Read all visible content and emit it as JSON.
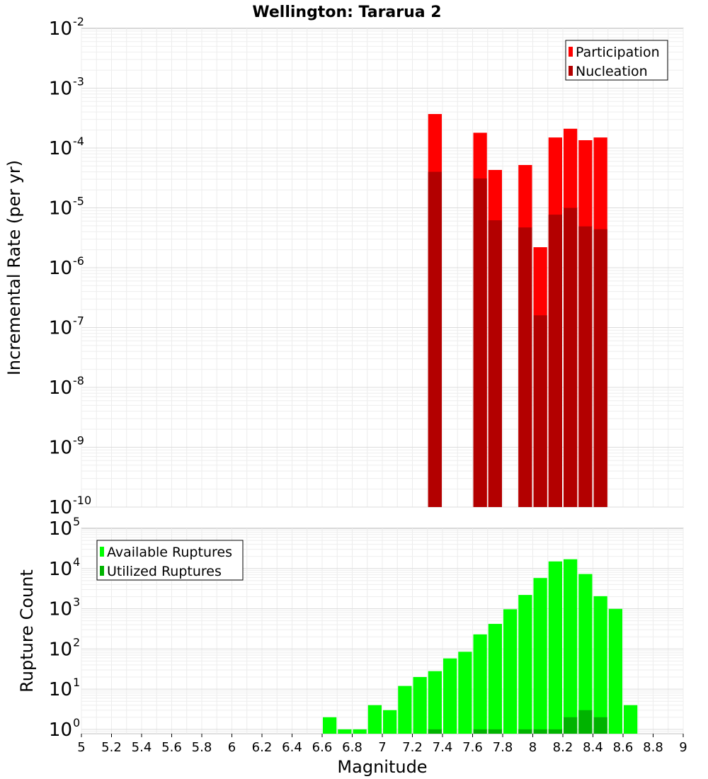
{
  "title": "Wellington: Tararua 2",
  "chart_data": [
    {
      "type": "bar",
      "name": "incremental-rate",
      "ylabel": "Incremental Rate (per yr)",
      "yscale": "log",
      "ylim_exp": [
        -10,
        -2
      ],
      "xlim": [
        5,
        9
      ],
      "bin_width": 0.1,
      "legend_position": "top-right",
      "series": [
        {
          "name": "Participation",
          "color": "#ff0000",
          "x": [
            7.35,
            7.65,
            7.75,
            7.95,
            8.05,
            8.15,
            8.25,
            8.35,
            8.45
          ],
          "values": [
            0.00037,
            0.00018,
            4.3e-05,
            5.2e-05,
            2.2e-06,
            0.00015,
            0.00021,
            0.000135,
            0.00015
          ]
        },
        {
          "name": "Nucleation",
          "color": "#b30000",
          "x": [
            7.35,
            7.65,
            7.75,
            7.95,
            8.05,
            8.15,
            8.25,
            8.35,
            8.45
          ],
          "values": [
            4e-05,
            3.1e-05,
            6.2e-06,
            4.7e-06,
            1.6e-07,
            7.7e-06,
            1e-05,
            4.9e-06,
            4.4e-06
          ]
        }
      ]
    },
    {
      "type": "bar",
      "name": "rupture-count",
      "ylabel": "Rupture Count",
      "xlabel": "Magnitude",
      "yscale": "log",
      "ylim_exp": [
        0,
        5
      ],
      "ymin_value": 0.78,
      "xlim": [
        5,
        9
      ],
      "xticks": [
        "5",
        "5.2",
        "5.4",
        "5.6",
        "5.8",
        "6",
        "6.2",
        "6.4",
        "6.6",
        "6.8",
        "7",
        "7.2",
        "7.4",
        "7.6",
        "7.8",
        "8",
        "8.2",
        "8.4",
        "8.6",
        "8.8",
        "9"
      ],
      "bin_width": 0.1,
      "legend_position": "top-left",
      "series": [
        {
          "name": "Available Ruptures",
          "color": "#00ff00",
          "x": [
            6.65,
            6.75,
            6.85,
            6.95,
            7.05,
            7.15,
            7.25,
            7.35,
            7.45,
            7.55,
            7.65,
            7.75,
            7.85,
            7.95,
            8.05,
            8.15,
            8.25,
            8.35,
            8.45,
            8.55,
            8.65
          ],
          "values": [
            2,
            1,
            1,
            4,
            3,
            12,
            20,
            28,
            58,
            85,
            230,
            420,
            970,
            2200,
            5800,
            15000,
            17000,
            7300,
            2050,
            990,
            4
          ]
        },
        {
          "name": "Utilized Ruptures",
          "color": "#00b300",
          "x": [
            7.35,
            7.65,
            7.75,
            7.95,
            8.05,
            8.15,
            8.25,
            8.35,
            8.45
          ],
          "values": [
            1,
            1,
            1,
            1,
            1,
            1,
            2,
            3,
            2
          ]
        }
      ]
    }
  ]
}
